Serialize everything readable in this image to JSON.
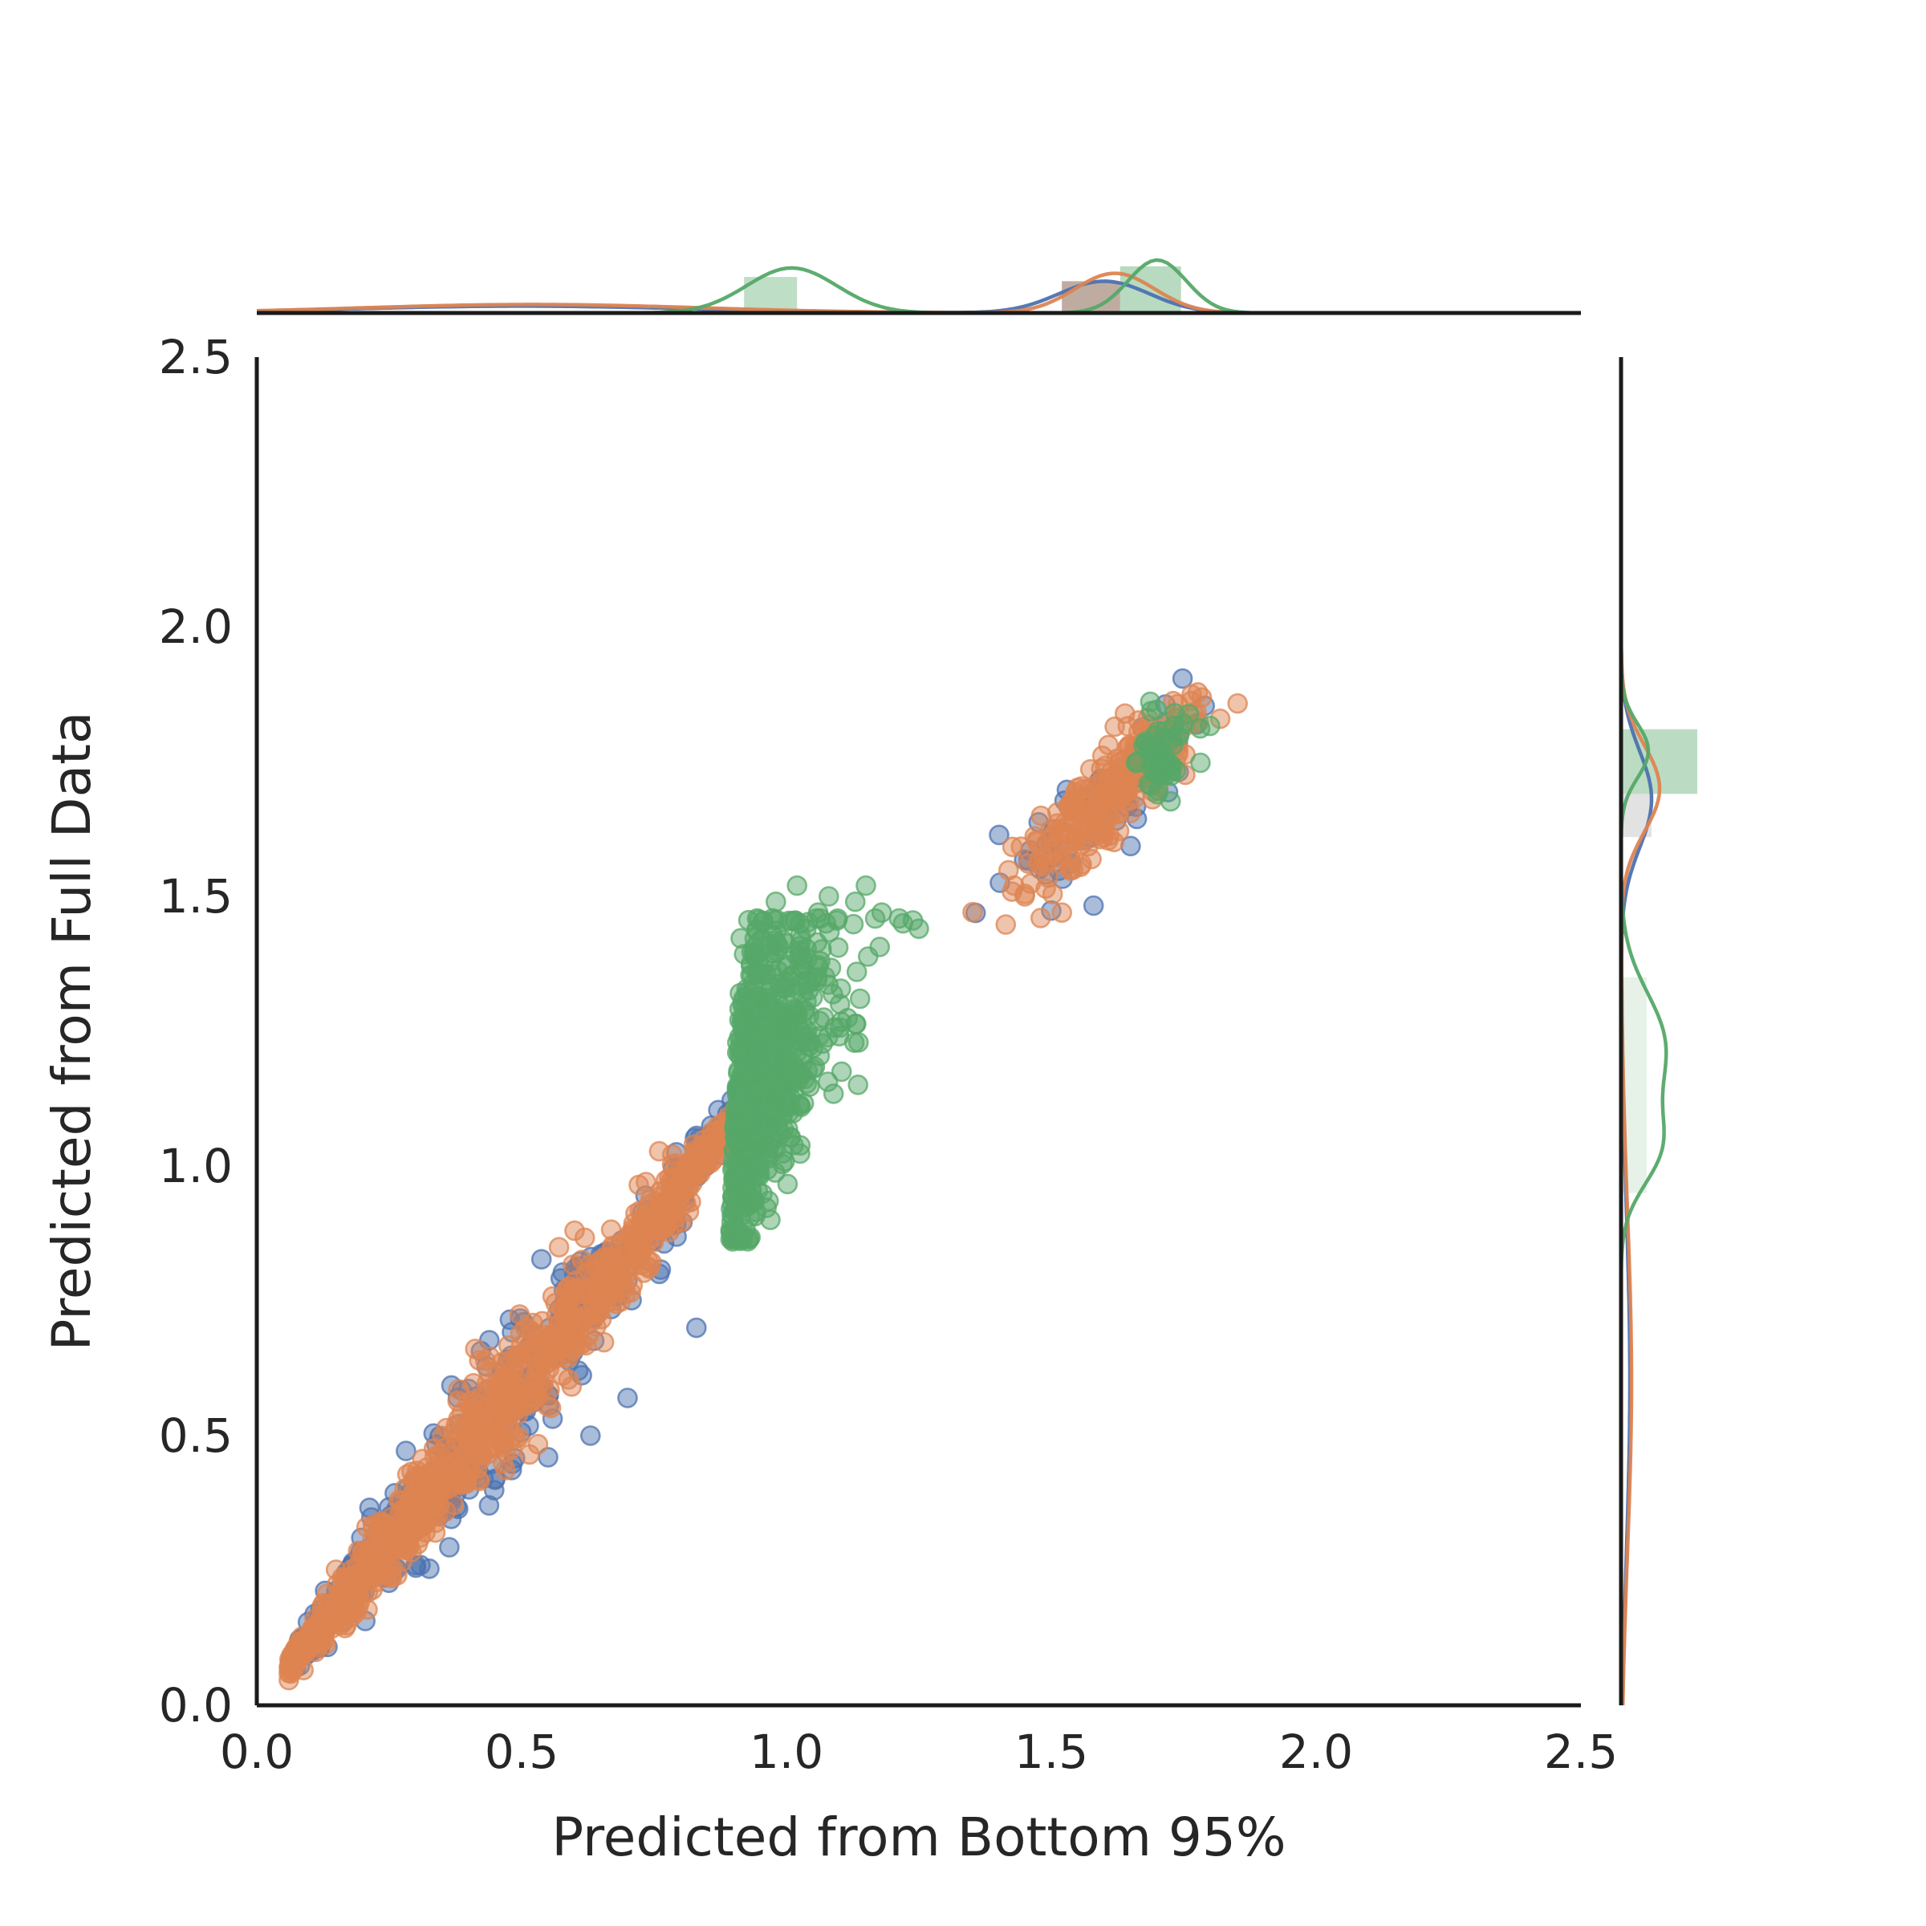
{
  "chart_data": {
    "type": "scatter",
    "variant": "jointplot-with-marginal-distributions",
    "title": "",
    "xlabel": "Predicted from Bottom 95%",
    "ylabel": "Predicted from Full Data",
    "xlim": [
      0.0,
      2.5
    ],
    "ylim": [
      0.0,
      2.5
    ],
    "xticks": [
      0.0,
      0.5,
      1.0,
      1.5,
      2.0,
      2.5
    ],
    "yticks": [
      0.0,
      0.5,
      1.0,
      1.5,
      2.0,
      2.5
    ],
    "grid": false,
    "legend": "none",
    "axis_color": "#1a1a1a",
    "text_color": "#262626",
    "marker_alpha": 0.48,
    "series": [
      {
        "name": "series-blue",
        "color": "#4C72B0",
        "marker": "circle",
        "clusters": [
          {
            "kind": "band",
            "from": [
              0.07,
              0.08
            ],
            "to": [
              0.93,
              1.12
            ],
            "sigma_min": 0.012,
            "sigma_max": 0.055,
            "xjit": 0.03,
            "count": 480
          },
          {
            "kind": "blob",
            "center": [
              1.59,
              1.66
            ],
            "sx": 0.105,
            "sy": 0.105,
            "corr": 0.86,
            "count": 70
          },
          {
            "kind": "points",
            "values": [
              [
                0.24,
                0.33
              ],
              [
                0.33,
                0.35
              ],
              [
                0.45,
                0.42
              ],
              [
                0.55,
                0.46
              ],
              [
                0.63,
                0.5
              ],
              [
                0.52,
                0.61
              ],
              [
                0.7,
                0.57
              ],
              [
                0.83,
                0.7
              ],
              [
                0.3,
                0.26
              ],
              [
                0.57,
                0.67
              ],
              [
                0.76,
                0.8
              ]
            ]
          }
        ]
      },
      {
        "name": "series-orange",
        "color": "#DD8452",
        "marker": "circle",
        "clusters": [
          {
            "kind": "band",
            "from": [
              0.06,
              0.07
            ],
            "to": [
              0.93,
              1.12
            ],
            "sigma_min": 0.01,
            "sigma_max": 0.042,
            "xjit": 0.026,
            "count": 980
          },
          {
            "kind": "blob",
            "center": [
              1.61,
              1.69
            ],
            "sx": 0.085,
            "sy": 0.09,
            "corr": 0.88,
            "count": 230
          },
          {
            "kind": "points",
            "values": [
              [
                1.45,
                1.5
              ],
              [
                1.48,
                1.46
              ],
              [
                1.43,
                1.52
              ],
              [
                0.6,
                0.88
              ],
              [
                1.52,
                1.47
              ]
            ]
          }
        ]
      },
      {
        "name": "series-green",
        "color": "#55A868",
        "marker": "circle",
        "clusters": [
          {
            "kind": "halfblob",
            "clip_x": 0.893,
            "y_mu": 1.17,
            "y_sigma": 0.16,
            "y_min": 0.86,
            "y_max": 1.46,
            "lean": 0.02,
            "spread_base": 0.022,
            "spread_grow": 0.105,
            "count": 700
          },
          {
            "kind": "blob",
            "center": [
              1.705,
              1.77
            ],
            "sx": 0.028,
            "sy": 0.047,
            "corr": 0.25,
            "count": 50
          },
          {
            "kind": "points",
            "values": [
              [
                1.02,
                1.52
              ],
              [
                1.08,
                1.5
              ],
              [
                1.13,
                1.49
              ],
              [
                1.18,
                1.47
              ],
              [
                1.22,
                1.45
              ],
              [
                1.06,
                1.47
              ],
              [
                1.15,
                1.52
              ],
              [
                1.25,
                1.44
              ],
              [
                0.98,
                1.49
              ]
            ]
          }
        ]
      }
    ],
    "top_marginal": {
      "kde": [
        {
          "series": "series-blue",
          "color": "#4C72B0",
          "components": [
            {
              "mu": 0.5,
              "sigma": 0.32,
              "amp": 0.13
            },
            {
              "mu": 1.6,
              "sigma": 0.085,
              "amp": 0.6
            }
          ]
        },
        {
          "series": "series-orange",
          "color": "#DD8452",
          "components": [
            {
              "mu": 0.52,
              "sigma": 0.32,
              "amp": 0.16
            },
            {
              "mu": 1.62,
              "sigma": 0.075,
              "amp": 0.75
            }
          ]
        },
        {
          "series": "series-green",
          "color": "#55A868",
          "components": [
            {
              "mu": 1.01,
              "sigma": 0.085,
              "amp": 0.85
            },
            {
              "mu": 1.7,
              "sigma": 0.055,
              "amp": 1.0
            }
          ]
        }
      ],
      "bars": [
        {
          "from": 0.92,
          "to": 1.02,
          "height": 0.68,
          "color": "#55A868",
          "opacity": 0.38
        },
        {
          "from": 1.52,
          "to": 1.63,
          "height": 0.6,
          "color": "#7f5a44",
          "opacity": 0.5
        },
        {
          "from": 1.63,
          "to": 1.745,
          "height": 0.88,
          "color": "#55A868",
          "opacity": 0.42
        }
      ]
    },
    "right_marginal": {
      "kde": [
        {
          "series": "series-blue",
          "color": "#4C72B0",
          "components": [
            {
              "mu": 1.68,
              "sigma": 0.09,
              "amp": 0.38
            },
            {
              "mu": 0.6,
              "sigma": 0.32,
              "amp": 0.11
            }
          ]
        },
        {
          "series": "series-orange",
          "color": "#DD8452",
          "components": [
            {
              "mu": 1.7,
              "sigma": 0.08,
              "amp": 0.48
            },
            {
              "mu": 0.6,
              "sigma": 0.32,
              "amp": 0.13
            }
          ]
        },
        {
          "series": "series-green",
          "color": "#55A868",
          "components": [
            {
              "mu": 1.77,
              "sigma": 0.05,
              "amp": 0.34
            },
            {
              "mu": 1.22,
              "sigma": 0.1,
              "amp": 0.55
            },
            {
              "mu": 1.03,
              "sigma": 0.07,
              "amp": 0.42
            }
          ]
        }
      ],
      "bars": [
        {
          "from": 1.69,
          "to": 1.81,
          "len": 0.95,
          "color": "#55A868",
          "opacity": 0.4
        },
        {
          "from": 1.61,
          "to": 1.69,
          "len": 0.38,
          "color": "#8c8c8c",
          "opacity": 0.25
        },
        {
          "from": 0.95,
          "to": 1.35,
          "len": 0.32,
          "color": "#55A868",
          "opacity": 0.15
        }
      ]
    }
  }
}
